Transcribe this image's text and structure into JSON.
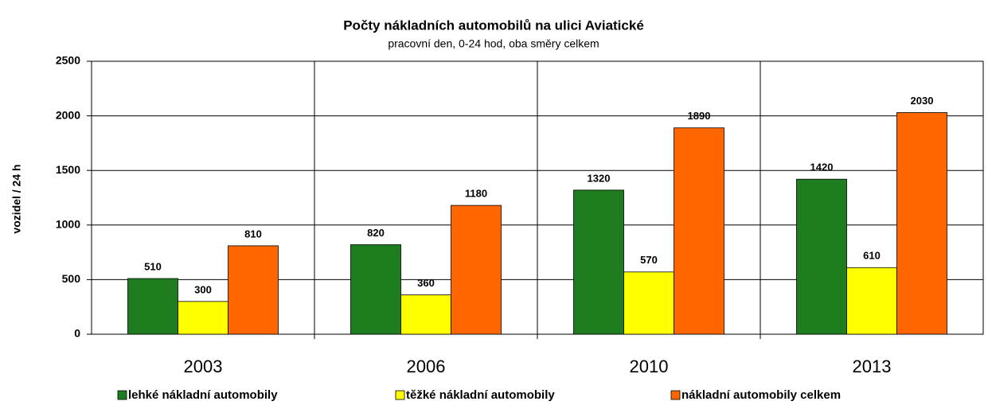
{
  "chart_data": {
    "type": "bar",
    "title": "Počty nákladních automobilů na ulici Aviatické",
    "subtitle": "pracovní den, 0-24 hod, oba směry celkem",
    "y_label": "vozidel / 24 h",
    "categories": [
      "2003",
      "2006",
      "2010",
      "2013"
    ],
    "series": [
      {
        "name": "lehké nákladní automobily",
        "color": "#1e7d1e",
        "values": [
          510,
          820,
          1320,
          1420
        ]
      },
      {
        "name": "těžké nákladní automobily",
        "color": "#ffff00",
        "values": [
          300,
          360,
          570,
          610
        ]
      },
      {
        "name": "nákladní automobily celkem",
        "color": "#ff6600",
        "values": [
          810,
          1180,
          1890,
          2030
        ]
      }
    ],
    "ylim": [
      0,
      2500
    ],
    "yticks": [
      0,
      500,
      1000,
      1500,
      2000,
      2500
    ],
    "grid": true,
    "legend": "bottom"
  }
}
